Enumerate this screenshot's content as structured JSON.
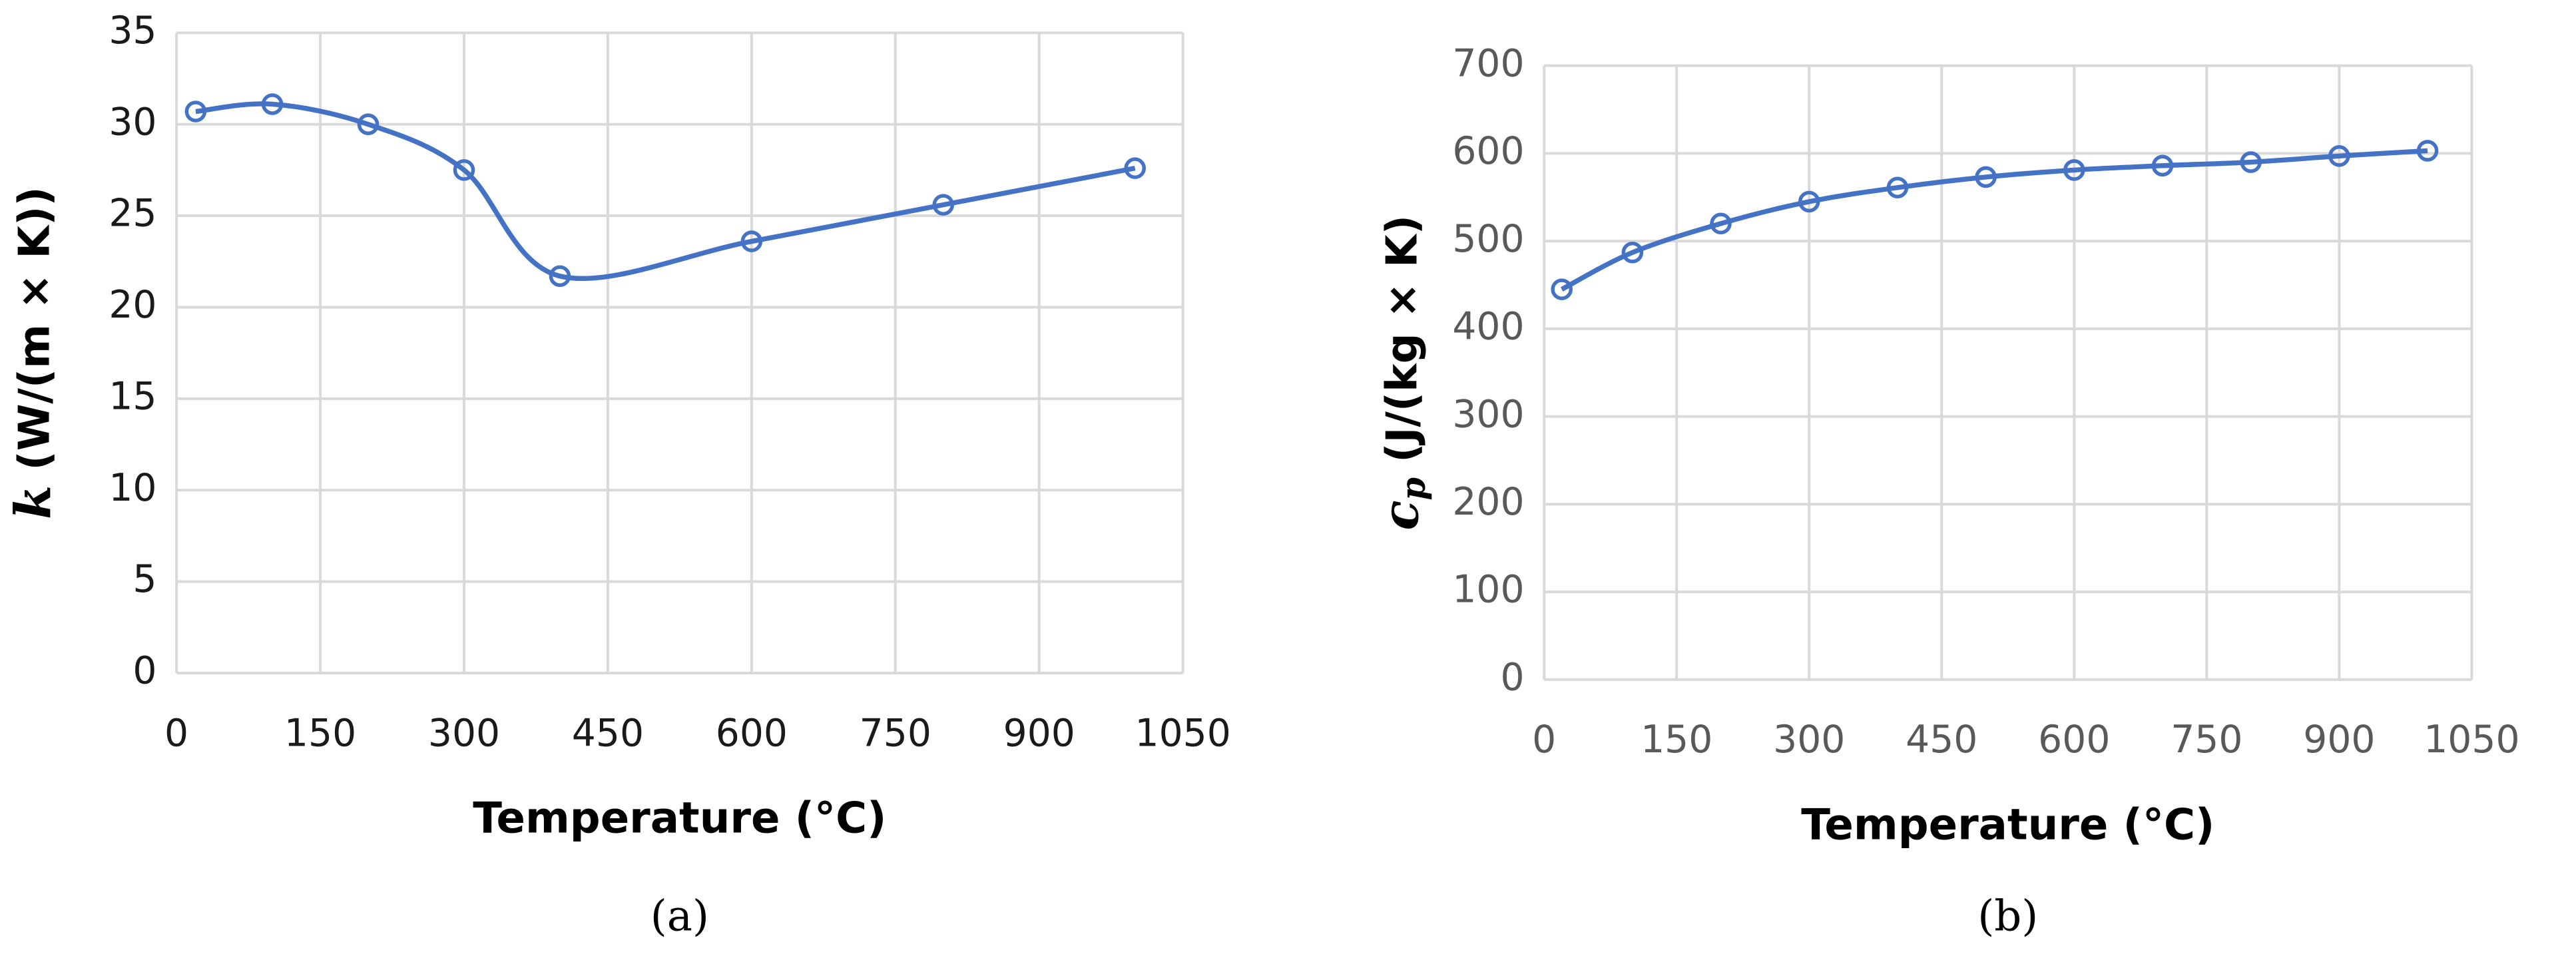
{
  "chart_data": [
    {
      "type": "line",
      "panel_label": "(a)",
      "x_label": "Temperature (°C)",
      "y_label_symbol": "k",
      "y_label_text": " (W/(m × K))",
      "x": [
        20,
        100,
        200,
        300,
        400,
        600,
        800,
        1000
      ],
      "series": [
        {
          "name": "k",
          "color": "#4472c4",
          "values": [
            30.7,
            31.1,
            30.0,
            27.5,
            21.7,
            23.6,
            25.6,
            27.6
          ]
        }
      ],
      "xlim": [
        0,
        1050
      ],
      "xticks": [
        0,
        150,
        300,
        450,
        600,
        750,
        900,
        1050
      ],
      "ylim": [
        0,
        35
      ],
      "yticks": [
        0,
        5,
        10,
        15,
        20,
        25,
        30,
        35
      ],
      "grid": true
    },
    {
      "type": "line",
      "panel_label": "(b)",
      "x_label": "Temperature (°C)",
      "y_label_symbol": "c",
      "y_label_subscript": "p",
      "y_label_text": " (J/(kg × K)",
      "x": [
        20,
        100,
        200,
        300,
        400,
        500,
        600,
        700,
        800,
        900,
        1000
      ],
      "series": [
        {
          "name": "cp",
          "color": "#4472c4",
          "values": [
            445,
            487,
            520,
            545,
            561,
            573,
            581,
            586,
            590,
            597,
            603
          ]
        }
      ],
      "xlim": [
        0,
        1050
      ],
      "xticks": [
        0,
        150,
        300,
        450,
        600,
        750,
        900,
        1050
      ],
      "ylim": [
        0,
        700
      ],
      "yticks": [
        0,
        100,
        200,
        300,
        400,
        500,
        600,
        700
      ],
      "grid": true
    }
  ]
}
